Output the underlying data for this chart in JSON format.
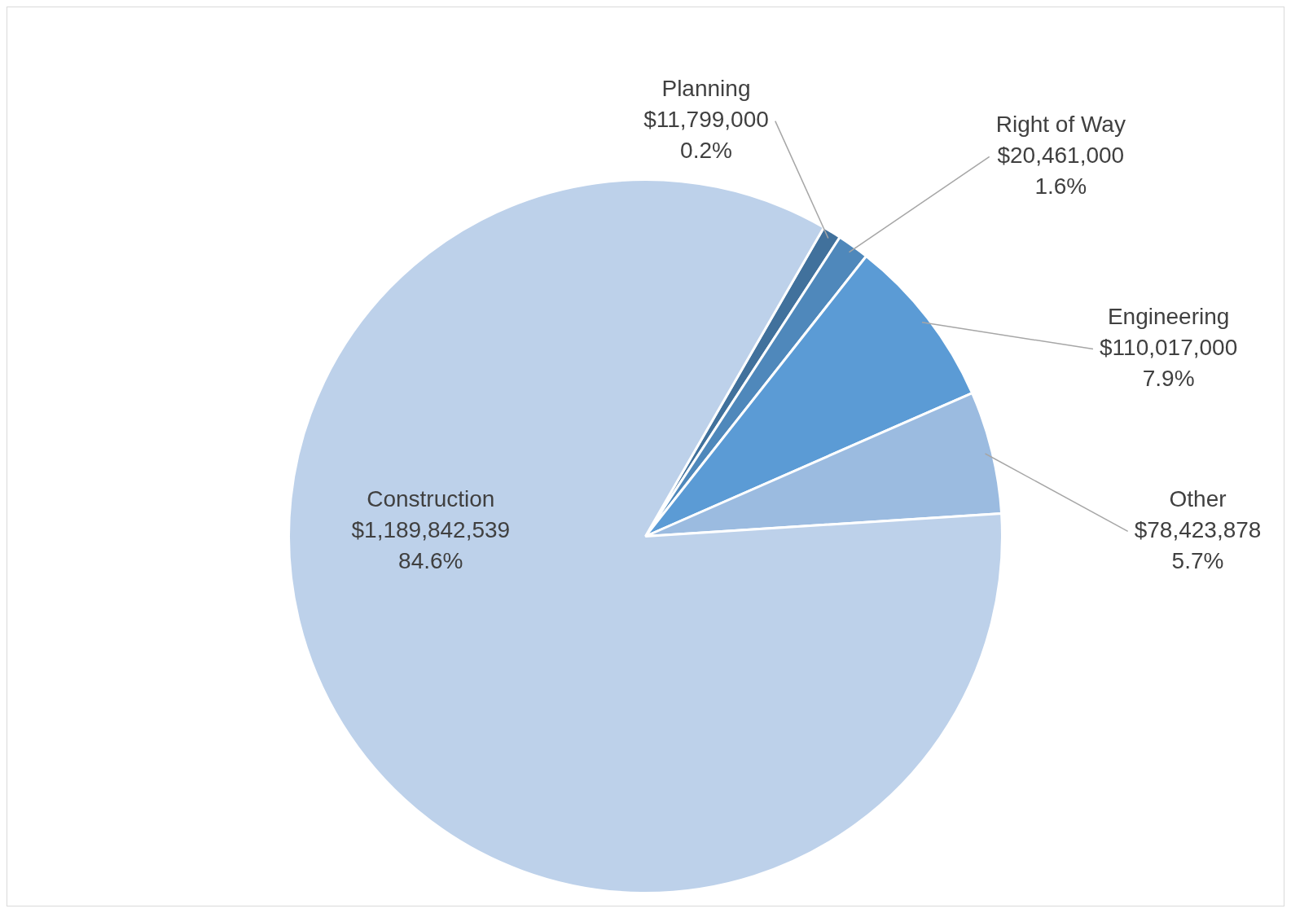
{
  "chart_data": {
    "type": "pie",
    "categories": [
      "Planning",
      "Right of Way",
      "Engineering",
      "Other",
      "Construction"
    ],
    "values": [
      11799000,
      20461000,
      110017000,
      78423878,
      1189842539
    ],
    "colors": [
      "#41719c",
      "#4f88bb",
      "#5b9bd5",
      "#9bbbe0",
      "#bdd1ea"
    ],
    "value_labels": [
      "$11,799,000\n0.2%",
      "$20,461,000\n1.6%",
      "$110,017,000\n7.9%",
      "$78,423,878\n5.7%",
      "$1,189,842,539\n84.6%"
    ],
    "legend": false
  }
}
